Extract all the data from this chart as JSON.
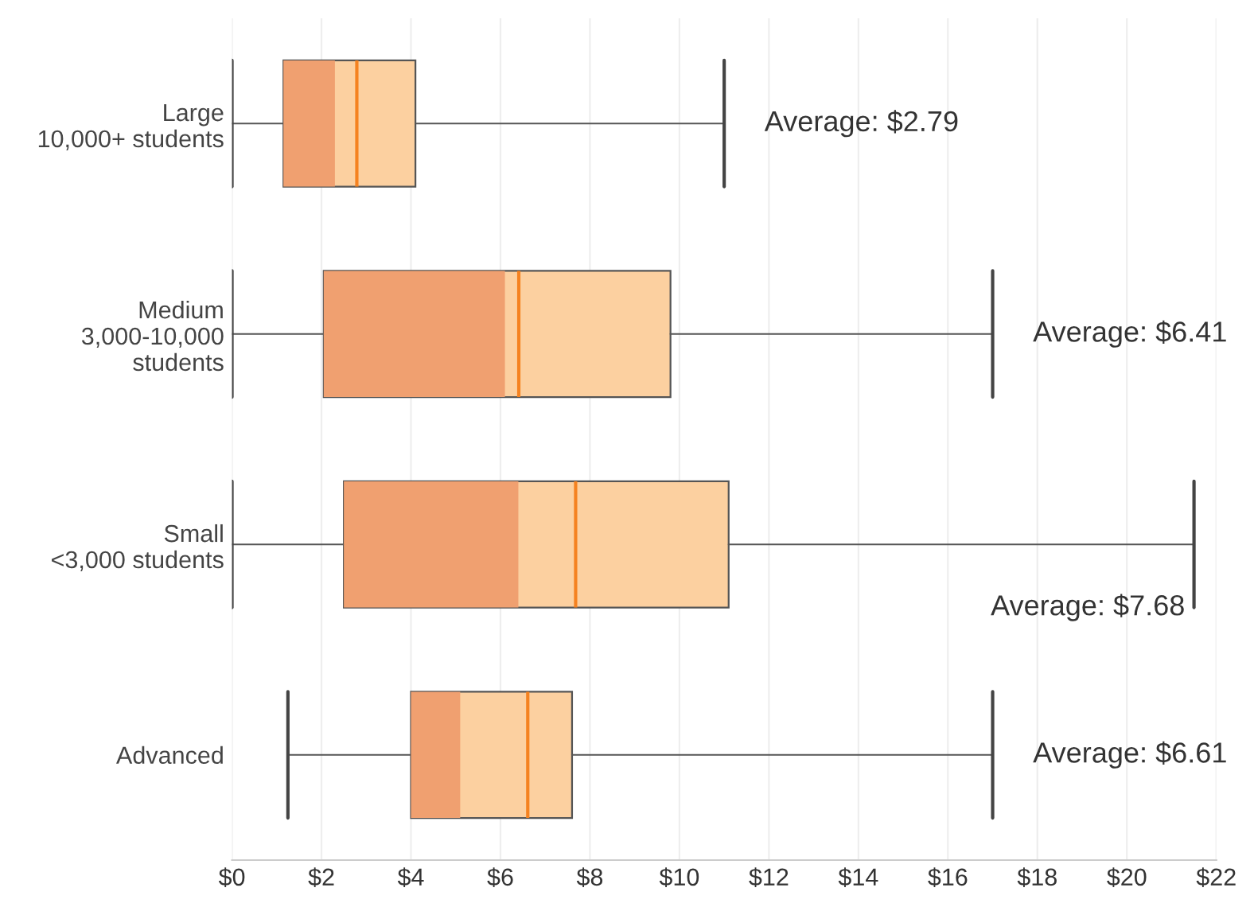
{
  "chart_data": {
    "type": "box",
    "orientation": "horizontal",
    "categories": [
      "Large\n10,000+ students",
      "Medium\n3,000-10,000\nstudents",
      "Small\n<3,000 students",
      "Advanced"
    ],
    "series": [
      {
        "color": "#fcd0a0",
        "boxes": [
          {
            "low": 0,
            "q1": 1.15,
            "median": 2.3,
            "q3": 4.1,
            "high": 11.0,
            "mean": 2.79
          },
          {
            "low": 0,
            "q1": 2.05,
            "median": 6.1,
            "q3": 9.8,
            "high": 17.0,
            "mean": 6.41
          },
          {
            "low": 0,
            "q1": 2.5,
            "median": 6.4,
            "q3": 11.1,
            "high": 21.5,
            "mean": 7.68
          },
          {
            "low": 1.25,
            "q1": 4.0,
            "median": 5.1,
            "q3": 7.6,
            "high": 17.0,
            "mean": 6.61
          }
        ]
      }
    ],
    "colors": [
      "#f0a070",
      "#f0a070",
      "#f0a070",
      "#f0a070"
    ],
    "annotations": [
      "Average: $2.79",
      "Average: $6.41",
      "Average: $7.68",
      "Average: $6.61"
    ],
    "xlim": [
      0,
      22
    ],
    "xticks": [
      {
        "value": 0,
        "label": "$0"
      },
      {
        "value": 2,
        "label": "$2"
      },
      {
        "value": 4,
        "label": "$4"
      },
      {
        "value": 6,
        "label": "$6"
      },
      {
        "value": 8,
        "label": "$8"
      },
      {
        "value": 10,
        "label": "$10"
      },
      {
        "value": 12,
        "label": "$12"
      },
      {
        "value": 14,
        "label": "$14"
      },
      {
        "value": 16,
        "label": "$16"
      },
      {
        "value": 18,
        "label": "$18"
      },
      {
        "value": 20,
        "label": "$20"
      },
      {
        "value": 22,
        "label": "$22"
      }
    ],
    "grid": "x"
  }
}
